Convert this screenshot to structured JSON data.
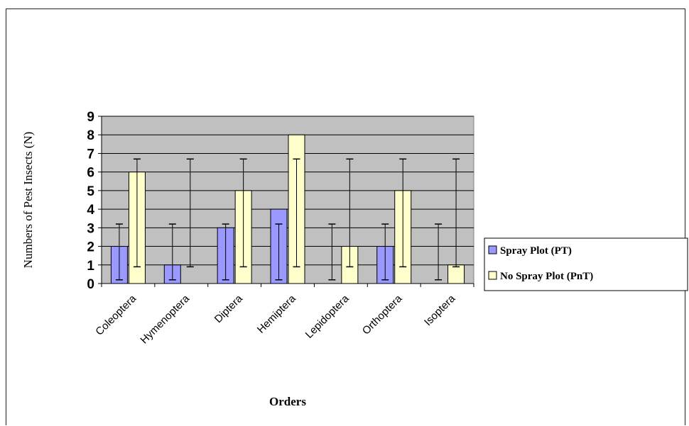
{
  "chart_data": {
    "type": "bar",
    "title": "",
    "xlabel": "Orders",
    "ylabel": "Numbers of Pest Insects (N)",
    "ylim": [
      0,
      9
    ],
    "yticks": [
      0,
      1,
      2,
      3,
      4,
      5,
      6,
      7,
      8,
      9
    ],
    "grid": true,
    "legend_position": "right",
    "categories": [
      "Coleoptera",
      "Hymenoptera",
      "Diptera",
      "Hemiptera",
      "Lepidoptera",
      "Orthoptera",
      "Isoptera"
    ],
    "series": [
      {
        "name": "Spray Plot (PT)",
        "color": "#9999ff",
        "values": [
          2,
          1,
          3,
          4,
          0,
          2,
          0
        ],
        "error_low": [
          0.2,
          0.2,
          0.2,
          0.2,
          0.2,
          0.2,
          0.2
        ],
        "error_high": [
          3.2,
          3.2,
          3.2,
          3.2,
          3.2,
          3.2,
          3.2
        ]
      },
      {
        "name": "No Spray Plot (PnT)",
        "color": "#ffffcc",
        "values": [
          6,
          0,
          5,
          8,
          2,
          5,
          1
        ],
        "error_low": [
          0.9,
          0.9,
          0.9,
          0.9,
          0.9,
          0.9,
          0.9
        ],
        "error_high": [
          6.7,
          6.7,
          6.7,
          6.7,
          6.7,
          6.7,
          6.7
        ]
      }
    ],
    "plot_background": "#c0c0c0"
  }
}
